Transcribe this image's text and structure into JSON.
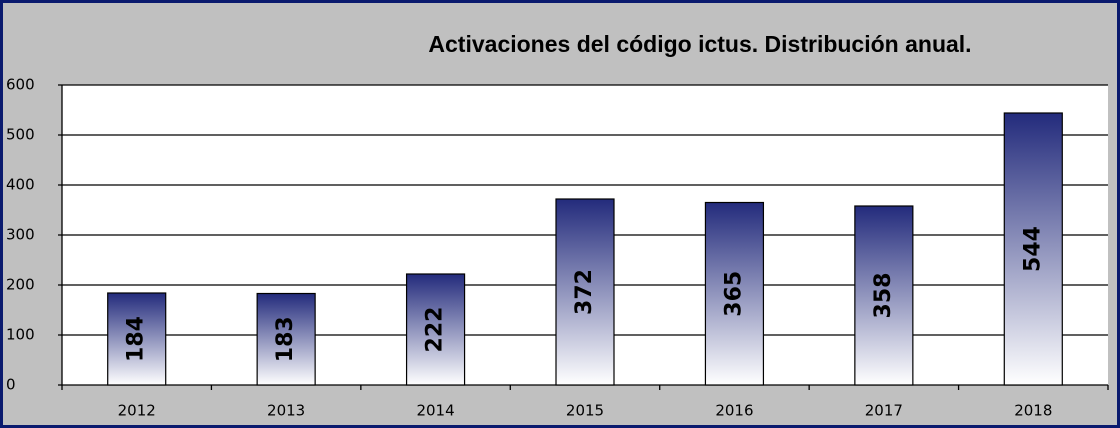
{
  "chart_data": {
    "type": "bar",
    "title": "Activaciones del código ictus. Distribución anual.",
    "categories": [
      "2012",
      "2013",
      "2014",
      "2015",
      "2016",
      "2017",
      "2018"
    ],
    "values": [
      184,
      183,
      222,
      372,
      365,
      358,
      544
    ],
    "color": "#232b7c",
    "ylim": [
      0,
      600
    ],
    "yticks": [
      0,
      100,
      200,
      300,
      400,
      500,
      600
    ],
    "grid": true
  }
}
